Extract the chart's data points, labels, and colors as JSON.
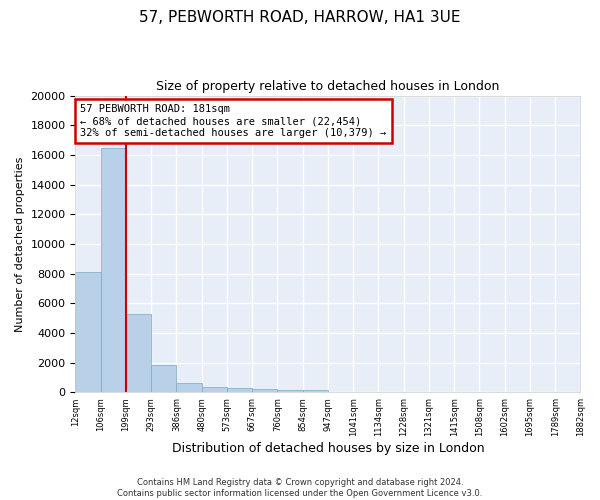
{
  "title": "57, PEBWORTH ROAD, HARROW, HA1 3UE",
  "subtitle": "Size of property relative to detached houses in London",
  "xlabel": "Distribution of detached houses by size in London",
  "ylabel": "Number of detached properties",
  "bar_values": [
    8100,
    16500,
    5300,
    1850,
    650,
    350,
    270,
    220,
    180,
    150,
    0,
    0,
    0,
    0,
    0,
    0,
    0,
    0,
    0,
    0
  ],
  "bar_labels": [
    "12sqm",
    "106sqm",
    "199sqm",
    "293sqm",
    "386sqm",
    "480sqm",
    "573sqm",
    "667sqm",
    "760sqm",
    "854sqm",
    "947sqm",
    "1041sqm",
    "1134sqm",
    "1228sqm",
    "1321sqm",
    "1415sqm",
    "1508sqm",
    "1602sqm",
    "1695sqm",
    "1789sqm",
    "1882sqm"
  ],
  "bar_color": "#b8d0e8",
  "bar_edge_color": "#7aaac8",
  "annotation_box_text": "57 PEBWORTH ROAD: 181sqm\n← 68% of detached houses are smaller (22,454)\n32% of semi-detached houses are larger (10,379) →",
  "annotation_box_color": "#ffffff",
  "annotation_box_edge_color": "#cc0000",
  "vline_color": "#cc0000",
  "ylim": [
    0,
    20000
  ],
  "yticks": [
    0,
    2000,
    4000,
    6000,
    8000,
    10000,
    12000,
    14000,
    16000,
    18000,
    20000
  ],
  "background_color": "#e8eef8",
  "grid_color": "#ffffff",
  "footnote": "Contains HM Land Registry data © Crown copyright and database right 2024.\nContains public sector information licensed under the Open Government Licence v3.0.",
  "title_fontsize": 11,
  "subtitle_fontsize": 9,
  "xlabel_fontsize": 9,
  "ylabel_fontsize": 8
}
